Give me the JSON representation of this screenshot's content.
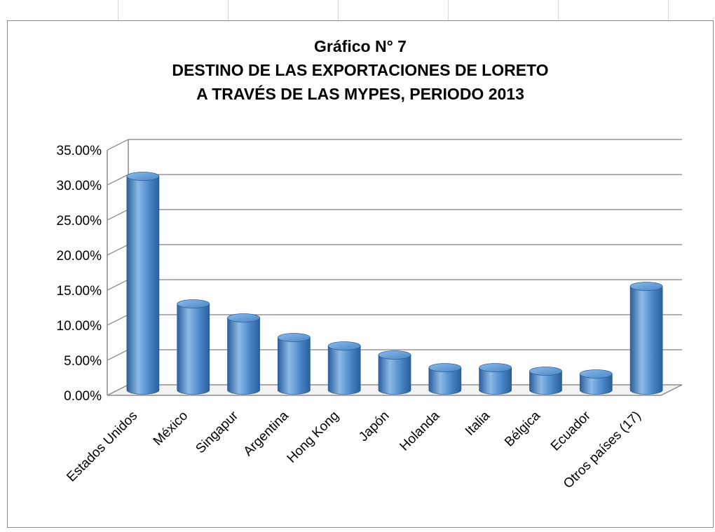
{
  "chart_data": {
    "type": "bar",
    "style": "3d-cylinder",
    "title_lines": [
      "Gráfico N°  7",
      "DESTINO DE LAS EXPORTACIONES DE LORETO",
      "A TRAVÉS DE LAS MYPES, PERIODO 2013"
    ],
    "categories": [
      "Estados Unidos",
      "México",
      "Singapur",
      "Argentina",
      "Hong Kong",
      "Japón",
      "Holanda",
      "Italia",
      "Bélgica",
      "Ecuador",
      "Otros países (17)"
    ],
    "values": [
      30.5,
      12.3,
      10.3,
      7.5,
      6.3,
      5.0,
      3.2,
      3.2,
      2.7,
      2.3,
      14.8
    ],
    "yticks": [
      "0.00%",
      "5.00%",
      "10.00%",
      "15.00%",
      "20.00%",
      "25.00%",
      "30.00%",
      "35.00%"
    ],
    "ylim": [
      0,
      35
    ],
    "xlabel": "",
    "ylabel": "",
    "grid": true,
    "legend": "none",
    "colors": {
      "bar": "#4a86c8",
      "bar_dark": "#2c5f9a",
      "bar_light": "#8cbbe8",
      "grid": "#808080",
      "floor": "#8c8c8c"
    }
  }
}
